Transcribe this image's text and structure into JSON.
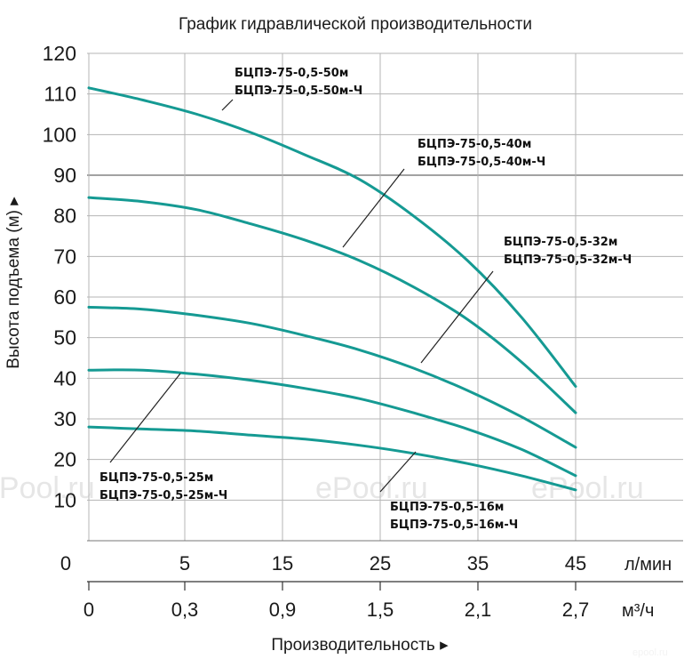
{
  "chart_data": {
    "type": "line",
    "title": "График гидравлической производительности",
    "ylabel": "Высота подъема (м)",
    "xlabel": "Производительность",
    "ylim": [
      0,
      120
    ],
    "xlim_lpm": [
      0,
      45
    ],
    "y_ticks": [
      "10",
      "20",
      "30",
      "40",
      "50",
      "60",
      "70",
      "80",
      "90",
      "100",
      "110",
      "120"
    ],
    "x_ticks_lpm": [
      "0",
      "5",
      "15",
      "25",
      "35",
      "45"
    ],
    "x_unit_lpm": "л/мин",
    "x_ticks_m3h": [
      "0",
      "0,3",
      "0,9",
      "1,5",
      "2,1",
      "2,7"
    ],
    "x_unit_m3h": "м³/ч",
    "grid": true,
    "line_color": "#159a93",
    "series": [
      {
        "name": "БЦПЭ-75-0,5-50м / БЦПЭ-75-0,5-50м-Ч",
        "label_lines": [
          "БЦПЭ-75-0,5-50м",
          "БЦПЭ-75-0,5-50м-Ч"
        ],
        "x": [
          0,
          5,
          10,
          15,
          20,
          25,
          30,
          35,
          40,
          45
        ],
        "y": [
          111.5,
          108.5,
          105,
          100.5,
          95,
          89,
          80,
          69,
          55,
          38
        ]
      },
      {
        "name": "БЦПЭ-75-0,5-40м / БЦПЭ-75-0,5-40м-Ч",
        "label_lines": [
          "БЦПЭ-75-0,5-40м",
          "БЦПЭ-75-0,5-40м-Ч"
        ],
        "x": [
          0,
          5,
          10,
          15,
          20,
          25,
          30,
          35,
          40,
          45
        ],
        "y": [
          84.5,
          83.5,
          81.5,
          78,
          74,
          69,
          62.5,
          54.5,
          44,
          31.5
        ]
      },
      {
        "name": "БЦПЭ-75-0,5-32м / БЦПЭ-75-0,5-32м-Ч",
        "label_lines": [
          "БЦПЭ-75-0,5-32м",
          "БЦПЭ-75-0,5-32м-Ч"
        ],
        "x": [
          0,
          5,
          10,
          15,
          20,
          25,
          30,
          35,
          40,
          45
        ],
        "y": [
          57.5,
          57,
          55.5,
          53.5,
          50.5,
          47,
          42.5,
          37,
          30.5,
          23
        ]
      },
      {
        "name": "БЦПЭ-75-0,5-25м / БЦПЭ-75-0,5-25м-Ч",
        "label_lines": [
          "БЦПЭ-75-0,5-25м",
          "БЦПЭ-75-0,5-25м-Ч"
        ],
        "x": [
          0,
          5,
          10,
          15,
          20,
          25,
          30,
          35,
          40,
          45
        ],
        "y": [
          42,
          42,
          41,
          39.5,
          37.5,
          35,
          31.5,
          27.5,
          22.5,
          16
        ]
      },
      {
        "name": "БЦПЭ-75-0,5-16м / БЦПЭ-75-0,5-16м-Ч",
        "label_lines": [
          "БЦПЭ-75-0,5-16м",
          "БЦПЭ-75-0,5-16м-Ч"
        ],
        "x": [
          0,
          5,
          10,
          15,
          20,
          25,
          30,
          35,
          40,
          45
        ],
        "y": [
          28,
          27.5,
          27,
          26,
          25,
          23.5,
          21.5,
          19,
          16,
          12.5
        ]
      }
    ]
  },
  "watermarks": [
    "ePool.ru",
    "ePool.ru",
    "ePool.ru",
    "epool.ru"
  ]
}
